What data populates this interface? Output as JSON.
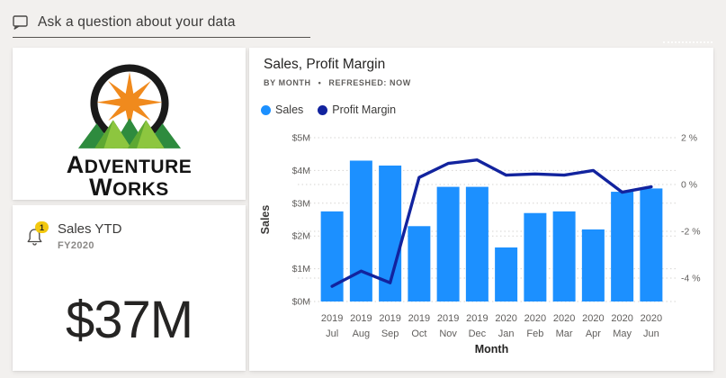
{
  "qa_bar": {
    "text": "Ask a question about your data"
  },
  "logo_card": {
    "name_line1": "Adventure",
    "name_line2": "Works",
    "colors": {
      "arc": "#1A1A1A",
      "star": "#F08A1D",
      "mountain_dark": "#2E8B3E",
      "mountain_light": "#8DC63F",
      "mountain_shadow": "#1F6B2E"
    }
  },
  "kpi_card": {
    "alert_count": "1",
    "title": "Sales YTD",
    "subtitle": "FY2020",
    "value": "$37M",
    "badge_color": "#F2C80F"
  },
  "chart_card": {
    "title": "Sales, Profit Margin",
    "subtitle": {
      "by": "BY MONTH",
      "separator": "•",
      "refreshed": "REFRESHED: NOW"
    },
    "legend": [
      {
        "label": "Sales",
        "color": "#1C90FF"
      },
      {
        "label": "Profit Margin",
        "color": "#12239E"
      }
    ]
  },
  "chart_data": {
    "type": "combo bar+line",
    "categories": [
      {
        "year": "2019",
        "month": "Jul"
      },
      {
        "year": "2019",
        "month": "Aug"
      },
      {
        "year": "2019",
        "month": "Sep"
      },
      {
        "year": "2019",
        "month": "Oct"
      },
      {
        "year": "2019",
        "month": "Nov"
      },
      {
        "year": "2019",
        "month": "Dec"
      },
      {
        "year": "2020",
        "month": "Jan"
      },
      {
        "year": "2020",
        "month": "Feb"
      },
      {
        "year": "2020",
        "month": "Mar"
      },
      {
        "year": "2020",
        "month": "Apr"
      },
      {
        "year": "2020",
        "month": "May"
      },
      {
        "year": "2020",
        "month": "Jun"
      }
    ],
    "bar_series": {
      "name": "Sales",
      "axis": "left",
      "color": "#1C90FF",
      "values": [
        2.75,
        4.3,
        4.15,
        2.3,
        3.5,
        3.5,
        1.65,
        2.7,
        2.75,
        2.2,
        3.35,
        3.45
      ],
      "unit": "$M"
    },
    "line_series": {
      "name": "Profit Margin",
      "axis": "right",
      "color": "#12239E",
      "values": [
        -4.35,
        -3.7,
        -4.2,
        0.3,
        0.9,
        1.05,
        0.4,
        0.45,
        0.4,
        0.6,
        -0.33,
        -0.1
      ],
      "unit": "%"
    },
    "left_axis": {
      "title": "Sales",
      "min": 0,
      "max": 5,
      "ticks": [
        {
          "label": "$0M",
          "value": 0
        },
        {
          "label": "$1M",
          "value": 1
        },
        {
          "label": "$2M",
          "value": 2
        },
        {
          "label": "$3M",
          "value": 3
        },
        {
          "label": "$4M",
          "value": 4
        },
        {
          "label": "$5M",
          "value": 5
        }
      ]
    },
    "right_axis": {
      "min": -5,
      "max": 2,
      "ticks": [
        {
          "label": "2 %",
          "value": 2
        },
        {
          "label": "0 %",
          "value": 0
        },
        {
          "label": "-2 %",
          "value": -2
        },
        {
          "label": "-4 %",
          "value": -4
        }
      ]
    },
    "x_axis": {
      "title": "Month"
    },
    "grid": "dotted horizontal gridlines for both axes"
  }
}
